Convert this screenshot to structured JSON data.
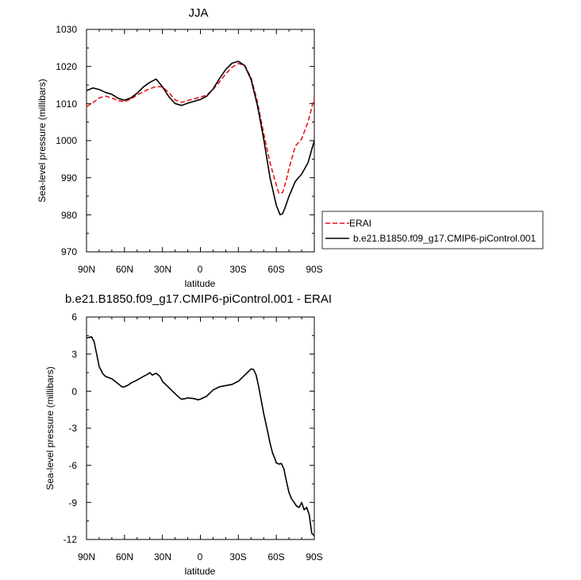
{
  "chart_data": [
    {
      "type": "line",
      "title": "JJA",
      "xlabel": "latitude",
      "ylabel": "Sea-level pressure (millibars)",
      "xlim": [
        90,
        -90
      ],
      "ylim": [
        970,
        1030
      ],
      "x_ticks": [
        90,
        60,
        30,
        0,
        -30,
        -60,
        -90
      ],
      "x_tick_labels": [
        "90N",
        "60N",
        "30N",
        "0",
        "30S",
        "60S",
        "90S"
      ],
      "y_ticks": [
        970,
        980,
        990,
        1000,
        1010,
        1020,
        1030
      ],
      "y_tick_labels": [
        "970",
        "980",
        "990",
        "1000",
        "1010",
        "1020",
        "1030"
      ],
      "legend": "right",
      "series": [
        {
          "name": "ERAI",
          "color": "#e8141c",
          "dash": true,
          "x": [
            90,
            85,
            80,
            75,
            70,
            65,
            60,
            55,
            50,
            45,
            40,
            35,
            30,
            25,
            20,
            15,
            10,
            5,
            0,
            -5,
            -10,
            -15,
            -20,
            -25,
            -30,
            -35,
            -40,
            -45,
            -50,
            -55,
            -60,
            -62,
            -65,
            -68,
            -70,
            -75,
            -80,
            -85,
            -90
          ],
          "values": [
            1009.2,
            1010.2,
            1011.5,
            1012.0,
            1011.5,
            1010.8,
            1010.5,
            1011.2,
            1012.3,
            1013.2,
            1014.0,
            1014.6,
            1014.5,
            1013.0,
            1011.0,
            1010.3,
            1010.8,
            1011.3,
            1011.7,
            1012.3,
            1013.8,
            1015.8,
            1018.0,
            1019.8,
            1020.8,
            1020.3,
            1017.0,
            1010.5,
            1002.0,
            994.0,
            988.0,
            985.8,
            986.0,
            989.5,
            992.5,
            998.5,
            1000.5,
            1005.0,
            1011.5
          ]
        },
        {
          "name": "b.e21.B1850.f09_g17.CMIP6-piControl.001",
          "color": "#000000",
          "dash": false,
          "x": [
            90,
            85,
            80,
            75,
            70,
            65,
            60,
            55,
            50,
            45,
            40,
            35,
            30,
            25,
            20,
            15,
            10,
            5,
            0,
            -5,
            -10,
            -15,
            -20,
            -25,
            -30,
            -35,
            -40,
            -45,
            -50,
            -55,
            -60,
            -63,
            -65,
            -67,
            -70,
            -75,
            -80,
            -85,
            -90
          ],
          "values": [
            1013.5,
            1014.2,
            1013.8,
            1013.0,
            1012.5,
            1011.4,
            1010.9,
            1011.5,
            1012.8,
            1014.5,
            1015.7,
            1016.6,
            1014.5,
            1011.9,
            1010.0,
            1009.5,
            1010.1,
            1010.6,
            1011.1,
            1012.0,
            1013.9,
            1016.7,
            1019.2,
            1020.9,
            1021.4,
            1020.2,
            1016.5,
            1009.5,
            1000.5,
            990.0,
            982.5,
            980.0,
            980.3,
            982.0,
            985.0,
            989.0,
            991.0,
            994.0,
            1000.0
          ]
        }
      ]
    },
    {
      "type": "line",
      "title": "b.e21.B1850.f09_g17.CMIP6-piControl.001 - ERAI",
      "xlabel": "latitude",
      "ylabel": "Sea-level pressure (millibars)",
      "xlim": [
        90,
        -90
      ],
      "ylim": [
        -12,
        6
      ],
      "x_ticks": [
        90,
        60,
        30,
        0,
        -30,
        -60,
        -90
      ],
      "x_tick_labels": [
        "90N",
        "60N",
        "30N",
        "0",
        "30S",
        "60S",
        "90S"
      ],
      "y_ticks": [
        -12,
        -9,
        -6,
        -3,
        0,
        3,
        6
      ],
      "y_tick_labels": [
        "-12",
        "-9",
        "-6",
        "-3",
        "0",
        "3",
        "6"
      ],
      "series": [
        {
          "color": "#000000",
          "dash": false,
          "x": [
            90,
            86,
            84,
            82,
            80,
            77,
            75,
            70,
            65,
            62,
            60,
            57,
            55,
            50,
            45,
            42,
            40,
            38,
            35,
            32,
            30,
            25,
            20,
            17,
            15,
            12,
            10,
            5,
            2,
            0,
            -3,
            -5,
            -10,
            -15,
            -20,
            -25,
            -30,
            -33,
            -37,
            -40,
            -42,
            -44,
            -46,
            -48,
            -50,
            -53,
            -55,
            -57,
            -59,
            -60,
            -62,
            -64,
            -66,
            -68,
            -70,
            -72,
            -74,
            -76,
            -78,
            -80,
            -82,
            -84,
            -86,
            -88,
            -90
          ],
          "values": [
            4.3,
            4.4,
            4.0,
            3.0,
            2.0,
            1.4,
            1.2,
            1.0,
            0.6,
            0.35,
            0.35,
            0.5,
            0.65,
            0.9,
            1.2,
            1.35,
            1.5,
            1.3,
            1.45,
            1.2,
            0.8,
            0.3,
            -0.2,
            -0.5,
            -0.65,
            -0.6,
            -0.55,
            -0.6,
            -0.7,
            -0.65,
            -0.5,
            -0.4,
            0.1,
            0.35,
            0.45,
            0.55,
            0.8,
            1.1,
            1.5,
            1.8,
            1.75,
            1.3,
            0.4,
            -0.7,
            -1.8,
            -3.2,
            -4.2,
            -5.0,
            -5.5,
            -5.8,
            -5.9,
            -5.85,
            -6.3,
            -7.3,
            -8.2,
            -8.7,
            -9.0,
            -9.3,
            -9.4,
            -9.0,
            -9.6,
            -9.4,
            -10.0,
            -11.5,
            -11.7
          ]
        }
      ]
    }
  ]
}
